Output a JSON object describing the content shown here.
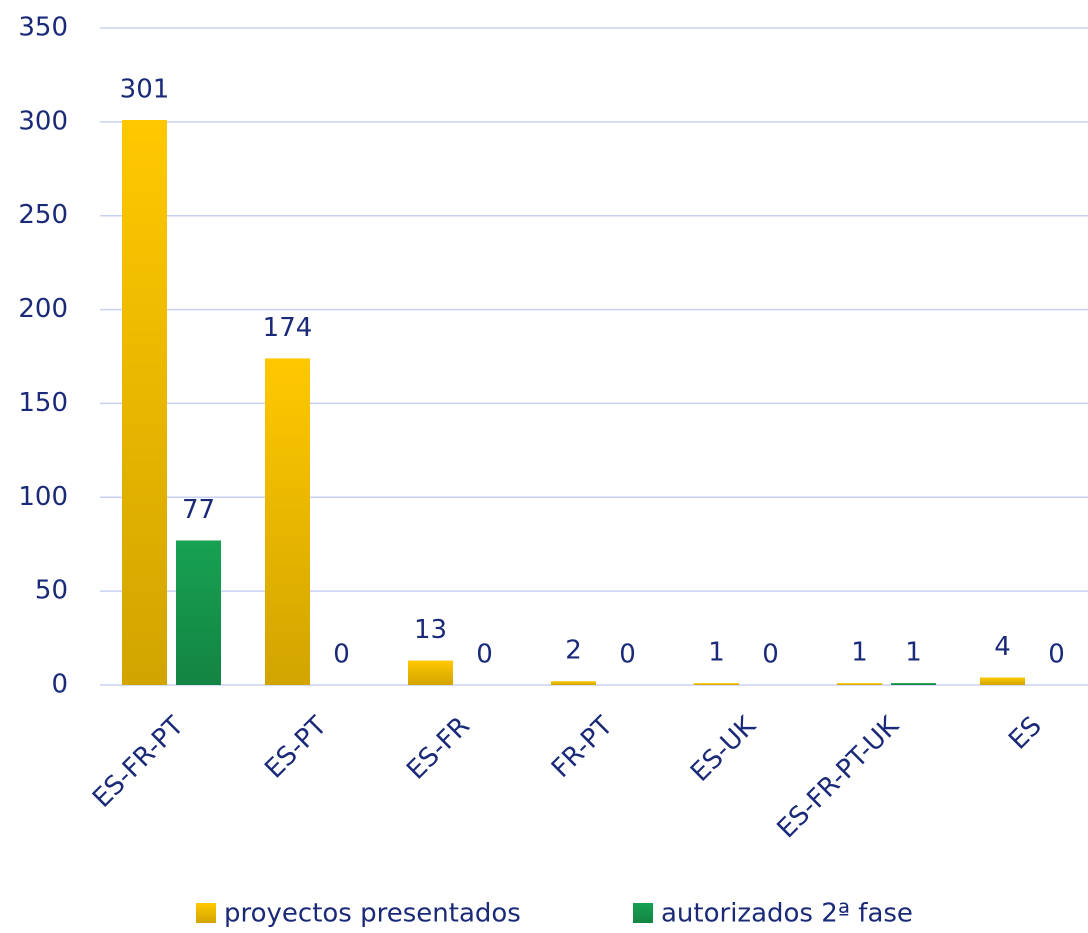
{
  "chart_data": {
    "type": "bar",
    "categories": [
      "ES-FR-PT",
      "ES-PT",
      "ES-FR",
      "FR-PT",
      "ES-UK",
      "ES-FR-PT-UK",
      "ES"
    ],
    "series": [
      {
        "name": "proyectos presentados",
        "color": "#ffc800",
        "values": [
          301,
          174,
          13,
          2,
          1,
          1,
          4
        ]
      },
      {
        "name": "autorizados 2ª fase",
        "color": "#17a152",
        "values": [
          77,
          0,
          0,
          0,
          0,
          1,
          0
        ]
      }
    ],
    "ylim": [
      0,
      350
    ],
    "yticks": [
      0,
      50,
      100,
      150,
      200,
      250,
      300,
      350
    ],
    "grid": true,
    "legend": "bottom"
  }
}
